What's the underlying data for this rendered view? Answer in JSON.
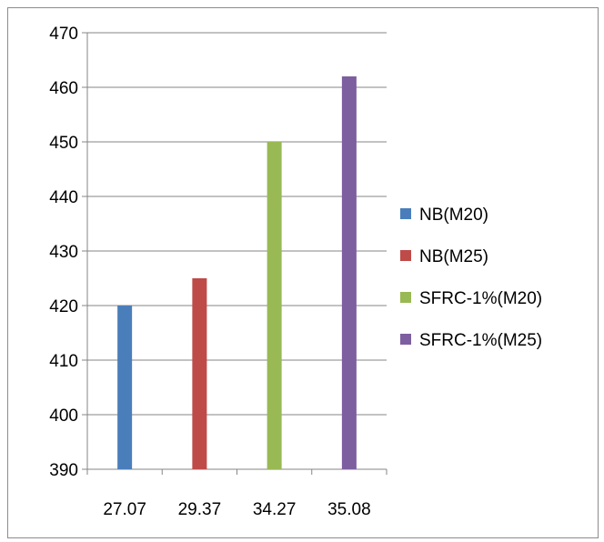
{
  "chart_data": {
    "type": "bar",
    "title": "",
    "xlabel": "",
    "ylabel": "",
    "categories": [
      "27.07",
      "29.37",
      "34.27",
      "35.08"
    ],
    "ylim": [
      390,
      470
    ],
    "yticks": [
      390,
      400,
      410,
      420,
      430,
      440,
      450,
      460,
      470
    ],
    "grid": true,
    "legend_position": "right",
    "series": [
      {
        "name": "NB(M20)",
        "color": "#4a7ebb",
        "values": [
          420,
          null,
          null,
          null
        ]
      },
      {
        "name": "NB(M25)",
        "color": "#be4b48",
        "values": [
          null,
          425,
          null,
          null
        ]
      },
      {
        "name": "SFRC-1%(M20)",
        "color": "#98b954",
        "values": [
          null,
          null,
          450,
          null
        ]
      },
      {
        "name": "SFRC-1%(M25)",
        "color": "#7d5fa0",
        "values": [
          null,
          null,
          null,
          462
        ]
      }
    ]
  }
}
